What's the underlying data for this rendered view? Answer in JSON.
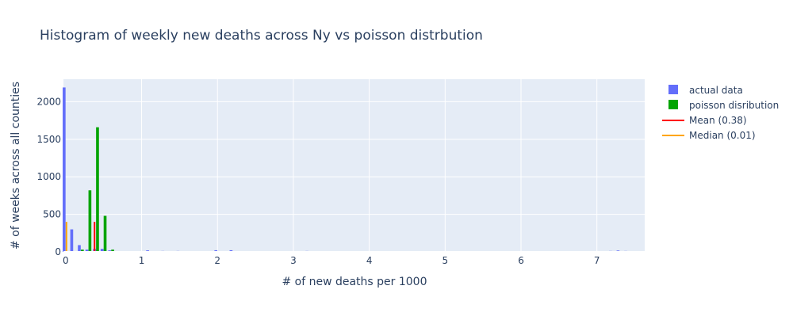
{
  "chart_data": {
    "type": "bar",
    "title": "Histogram of weekly new deaths across Ny vs poisson distrbution",
    "xlabel": "# of new deaths per 1000",
    "ylabel": "# of weeks across all counties",
    "xlim": [
      -0.03,
      7.63
    ],
    "ylim": [
      0,
      2300
    ],
    "xticks": [
      0,
      1,
      2,
      3,
      4,
      5,
      6,
      7
    ],
    "yticks": [
      0,
      500,
      1000,
      1500,
      2000
    ],
    "grid": true,
    "legend_position": "top-right",
    "series": [
      {
        "name": "actual data",
        "type": "histogram",
        "color": "#636efa",
        "bins": [
          {
            "x": 0.0,
            "y": 2190
          },
          {
            "x": 0.1,
            "y": 300
          },
          {
            "x": 0.2,
            "y": 90
          },
          {
            "x": 0.3,
            "y": 30
          },
          {
            "x": 0.4,
            "y": 40
          },
          {
            "x": 0.5,
            "y": 40
          },
          {
            "x": 0.6,
            "y": 20
          },
          {
            "x": 0.7,
            "y": 10
          },
          {
            "x": 0.8,
            "y": 8
          },
          {
            "x": 0.9,
            "y": 8
          },
          {
            "x": 1.1,
            "y": 20
          },
          {
            "x": 1.3,
            "y": 12
          },
          {
            "x": 1.4,
            "y": 10
          },
          {
            "x": 1.5,
            "y": 12
          },
          {
            "x": 1.6,
            "y": 10
          },
          {
            "x": 1.8,
            "y": 8
          },
          {
            "x": 2.0,
            "y": 22
          },
          {
            "x": 2.2,
            "y": 22
          },
          {
            "x": 2.4,
            "y": 6
          },
          {
            "x": 2.6,
            "y": 5
          },
          {
            "x": 2.8,
            "y": 5
          },
          {
            "x": 3.0,
            "y": 6
          },
          {
            "x": 3.2,
            "y": 12
          },
          {
            "x": 3.4,
            "y": 5
          },
          {
            "x": 3.6,
            "y": 5
          },
          {
            "x": 4.0,
            "y": 6
          },
          {
            "x": 4.4,
            "y": 5
          },
          {
            "x": 4.8,
            "y": 8
          },
          {
            "x": 5.0,
            "y": 8
          },
          {
            "x": 5.4,
            "y": 5
          },
          {
            "x": 5.8,
            "y": 5
          },
          {
            "x": 6.2,
            "y": 4
          },
          {
            "x": 6.6,
            "y": 4
          },
          {
            "x": 7.0,
            "y": 6
          },
          {
            "x": 7.2,
            "y": 12
          },
          {
            "x": 7.3,
            "y": 18
          },
          {
            "x": 7.4,
            "y": 12
          },
          {
            "x": 7.5,
            "y": 10
          }
        ]
      },
      {
        "name": "poisson disribution",
        "type": "histogram",
        "color": "#00a400",
        "bins": [
          {
            "x": 0.2,
            "y": 30
          },
          {
            "x": 0.3,
            "y": 820
          },
          {
            "x": 0.4,
            "y": 1660
          },
          {
            "x": 0.5,
            "y": 480
          },
          {
            "x": 0.6,
            "y": 30
          }
        ]
      },
      {
        "name": "Mean (0.38)",
        "type": "vline",
        "color": "#ff0000",
        "x": 0.38,
        "y": [
          0,
          400
        ]
      },
      {
        "name": "Median (0.01)",
        "type": "vline",
        "color": "#ffa500",
        "x": 0.01,
        "y": [
          0,
          400
        ]
      }
    ]
  }
}
